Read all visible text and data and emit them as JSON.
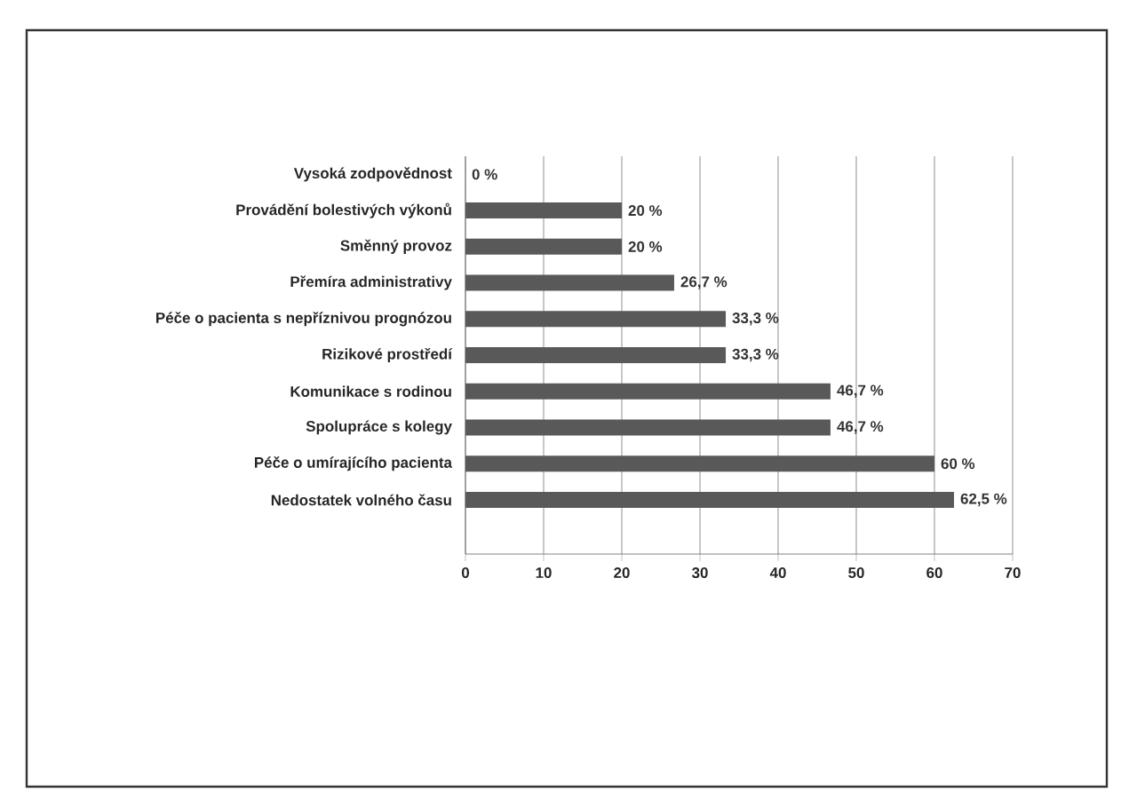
{
  "chart_data": {
    "type": "bar",
    "orientation": "horizontal",
    "categories": [
      "Vysoká zodpovědnost",
      "Provádění bolestivých výkonů",
      "Směnný provoz",
      "Přemíra administrativy",
      "Péče o pacienta s nepříznivou prognózou",
      "Rizikové prostředí",
      "Komunikace s rodinou",
      "Spolupráce s kolegy",
      "Péče o umírajícího pacienta",
      "Nedostatek volného času",
      null
    ],
    "values": [
      0,
      20,
      20,
      26.7,
      33.3,
      33.3,
      46.7,
      46.7,
      60,
      62.5,
      null
    ],
    "value_labels": [
      "0 %",
      "20 %",
      "20 %",
      "26,7 %",
      "33,3 %",
      "33,3 %",
      "46,7 %",
      "46,7 %",
      "60 %",
      "62,5 %",
      null
    ],
    "color": "#595959",
    "xlim": [
      0,
      70
    ],
    "xticks": [
      0,
      10,
      20,
      30,
      40,
      50,
      60,
      70
    ],
    "grid": "x"
  }
}
